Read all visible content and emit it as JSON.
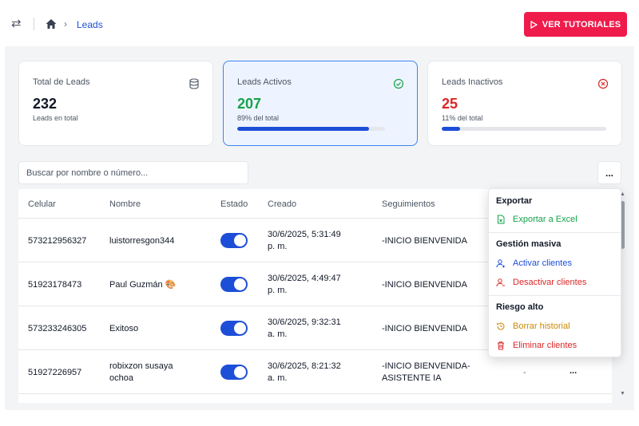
{
  "header": {
    "breadcrumb_current": "Leads",
    "tutorial_button": "VER TUTORIALES"
  },
  "cards": [
    {
      "title": "Total de Leads",
      "value": "232",
      "subtitle": "Leads en total",
      "icon": "database-icon",
      "color": "#111827"
    },
    {
      "title": "Leads Activos",
      "value": "207",
      "subtitle": "89% del total",
      "icon": "check-circle-icon",
      "color": "#16a34a",
      "progress": 0.89
    },
    {
      "title": "Leads Inactivos",
      "value": "25",
      "subtitle": "11% del total",
      "icon": "x-circle-icon",
      "color": "#dc2626",
      "progress": 0.11
    }
  ],
  "search": {
    "placeholder": "Buscar por nombre o número..."
  },
  "more_button": "...",
  "table": {
    "headers": [
      "Celular",
      "Nombre",
      "Estado",
      "Creado",
      "Seguimientos"
    ],
    "rows": [
      {
        "celular": "573212956327",
        "nombre": "luistorresgon344",
        "estado": true,
        "creado_l1": "30/6/2025, 5:31:49",
        "creado_l2": "p. m.",
        "seg_l1": "-INICIO BIENVENIDA",
        "seg_l2": ""
      },
      {
        "celular": "51923178473",
        "nombre": "Paul Guzmán 🎨",
        "estado": true,
        "creado_l1": "30/6/2025, 4:49:47",
        "creado_l2": "p. m.",
        "seg_l1": "-INICIO BIENVENIDA",
        "seg_l2": ""
      },
      {
        "celular": "573233246305",
        "nombre": "Exitoso",
        "estado": true,
        "creado_l1": "30/6/2025, 9:32:31",
        "creado_l2": "a. m.",
        "seg_l1": "-INICIO BIENVENIDA",
        "seg_l2": ""
      },
      {
        "celular": "51927226957",
        "nombre_l1": "robixzon susaya",
        "nombre_l2": "ochoa",
        "estado": true,
        "creado_l1": "30/6/2025, 8:21:32",
        "creado_l2": "a. m.",
        "seg_l1": "-INICIO BIENVENIDA-",
        "seg_l2": "ASISTENTE IA",
        "extra": "-",
        "row_more": "..."
      }
    ]
  },
  "dropdown": {
    "sections": [
      {
        "title": "Exportar",
        "items": [
          {
            "label": "Exportar a Excel",
            "icon": "excel-file-icon",
            "color": "#16a34a"
          }
        ]
      },
      {
        "title": "Gestión masiva",
        "items": [
          {
            "label": "Activar clientes",
            "icon": "user-add-icon",
            "color": "#1d4ed8"
          },
          {
            "label": "Desactivar clientes",
            "icon": "user-remove-icon",
            "color": "#dc2626"
          }
        ]
      },
      {
        "title": "Riesgo alto",
        "items": [
          {
            "label": "Borrar historial",
            "icon": "history-icon",
            "color": "#ca8a04"
          },
          {
            "label": "Eliminar clientes",
            "icon": "trash-icon",
            "color": "#dc2626"
          }
        ]
      }
    ]
  }
}
